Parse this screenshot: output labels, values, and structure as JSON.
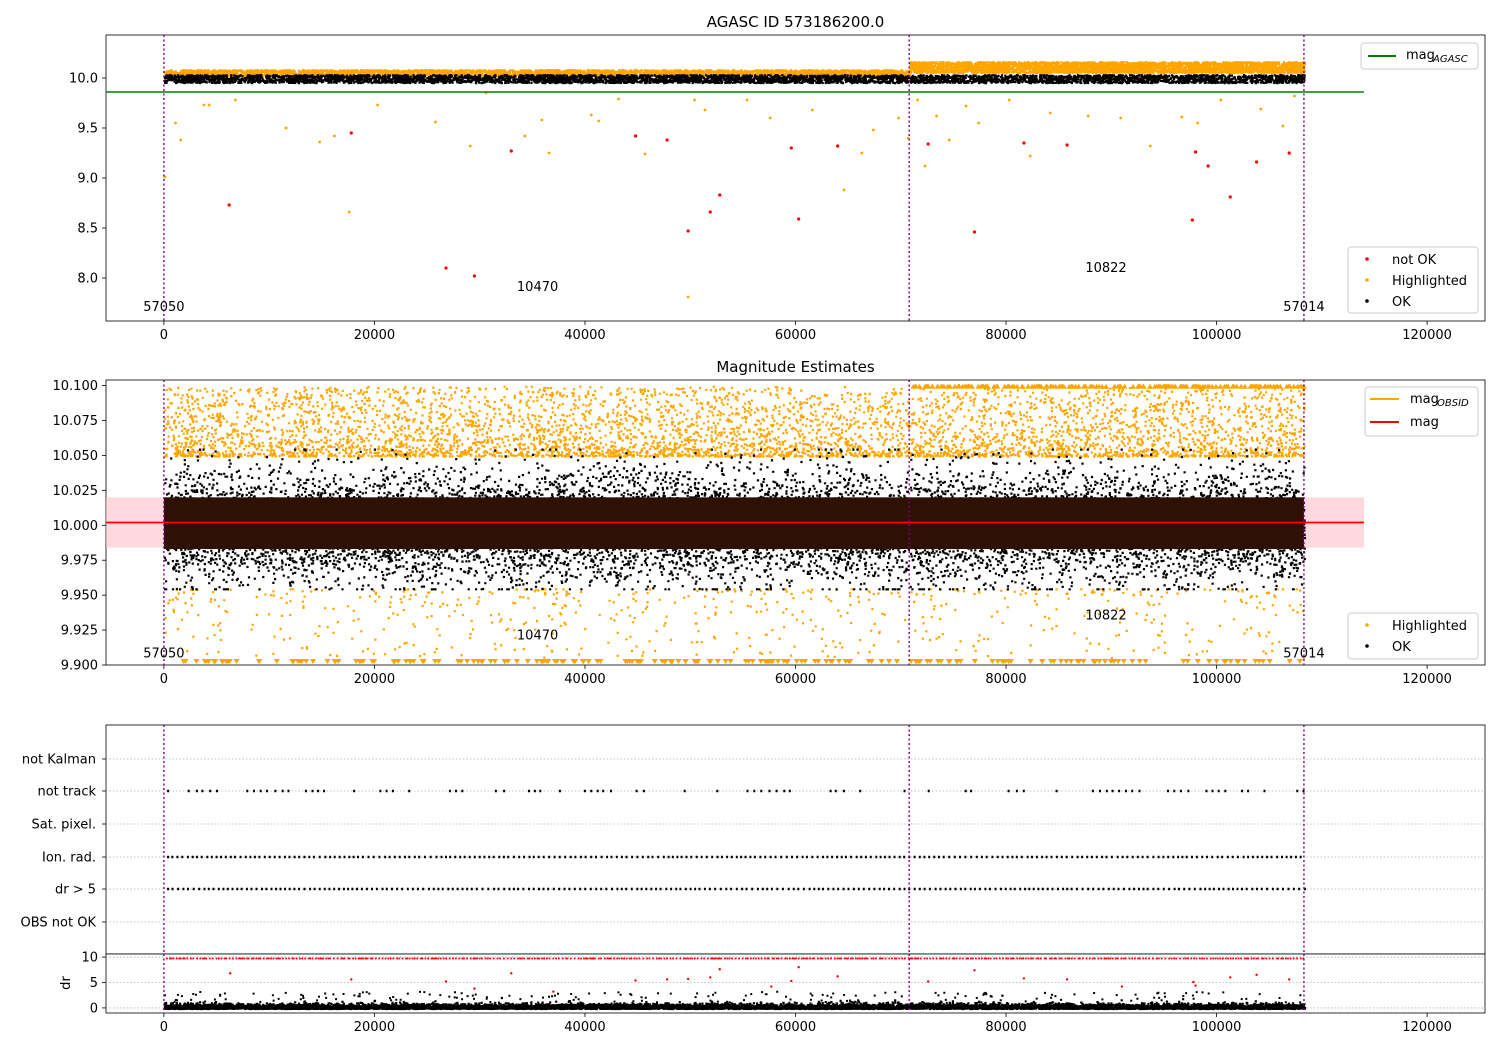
{
  "chart_data": [
    {
      "type": "scatter",
      "title": "AGASC ID 573186200.0",
      "xlim": [
        -5500,
        125500
      ],
      "ylim": [
        7.57,
        10.43
      ],
      "xticks": [
        0,
        20000,
        40000,
        60000,
        80000,
        100000,
        120000
      ],
      "yticks": [
        8.0,
        8.5,
        9.0,
        9.5,
        10.0
      ],
      "ytick_labels": [
        "8.0",
        "8.5",
        "9.0",
        "9.5",
        "10.0"
      ],
      "obsid_boundaries": [
        0,
        70800,
        108300
      ],
      "obsid_labels": [
        {
          "text": "57050",
          "x": 0,
          "y": 7.72
        },
        {
          "text": "10470",
          "x": 35500,
          "y": 7.92
        },
        {
          "text": "10822",
          "x": 89500,
          "y": 8.11
        },
        {
          "text": "57014",
          "x": 108300,
          "y": 7.72
        }
      ],
      "hlines": [
        {
          "name": "mag_AGASC",
          "y": 9.86,
          "x": [
            -5500,
            114000
          ],
          "color": "#008000"
        }
      ],
      "legend_upper": {
        "position": "top-right",
        "entries": [
          {
            "label": "mag",
            "sub": "AGASC",
            "kind": "line",
            "color": "#008000"
          }
        ]
      },
      "legend_lower": {
        "position": "bottom-right",
        "entries": [
          {
            "label": "not OK",
            "kind": "dot",
            "color": "#ff0000"
          },
          {
            "label": "Highlighted",
            "kind": "dot",
            "color": "#ffa500"
          },
          {
            "label": "OK",
            "kind": "dot",
            "color": "#000000"
          }
        ]
      },
      "series": [
        {
          "name": "not OK",
          "color": "#ff0000",
          "points": [
            [
              6200,
              8.73
            ],
            [
              17800,
              9.45
            ],
            [
              26800,
              8.1
            ],
            [
              29500,
              8.02
            ],
            [
              33000,
              9.27
            ],
            [
              44800,
              9.42
            ],
            [
              47800,
              9.38
            ],
            [
              49800,
              8.47
            ],
            [
              51900,
              8.66
            ],
            [
              52800,
              8.83
            ],
            [
              59600,
              9.3
            ],
            [
              60300,
              8.59
            ],
            [
              64000,
              9.32
            ],
            [
              72600,
              9.34
            ],
            [
              77000,
              8.46
            ],
            [
              81700,
              9.35
            ],
            [
              85800,
              9.33
            ],
            [
              97700,
              8.58
            ],
            [
              98000,
              9.26
            ],
            [
              99200,
              9.12
            ],
            [
              101300,
              8.81
            ],
            [
              103800,
              9.16
            ],
            [
              106900,
              9.25
            ]
          ]
        },
        {
          "name": "Highlighted",
          "color": "#ffa500",
          "points": [
            [
              100,
              9.01
            ],
            [
              1100,
              9.55
            ],
            [
              1600,
              9.38
            ],
            [
              3800,
              9.73
            ],
            [
              4300,
              9.73
            ],
            [
              6800,
              9.78
            ],
            [
              11600,
              9.5
            ],
            [
              14800,
              9.36
            ],
            [
              16200,
              9.42
            ],
            [
              17600,
              8.66
            ],
            [
              20300,
              9.73
            ],
            [
              25800,
              9.56
            ],
            [
              29100,
              9.32
            ],
            [
              30600,
              9.85
            ],
            [
              34300,
              9.42
            ],
            [
              35900,
              9.58
            ],
            [
              36600,
              9.25
            ],
            [
              40600,
              9.63
            ],
            [
              41300,
              9.57
            ],
            [
              43200,
              9.79
            ],
            [
              45700,
              9.24
            ],
            [
              49800,
              7.81
            ],
            [
              50400,
              9.78
            ],
            [
              51400,
              9.68
            ],
            [
              55400,
              9.78
            ],
            [
              57600,
              9.6
            ],
            [
              61600,
              9.68
            ],
            [
              64600,
              8.88
            ],
            [
              66300,
              9.25
            ],
            [
              67400,
              9.48
            ],
            [
              69800,
              9.6
            ],
            [
              70700,
              9.4
            ],
            [
              71600,
              9.78
            ],
            [
              72300,
              9.12
            ],
            [
              73400,
              9.62
            ],
            [
              74600,
              9.38
            ],
            [
              76200,
              9.72
            ],
            [
              77400,
              9.55
            ],
            [
              80300,
              9.78
            ],
            [
              82300,
              9.22
            ],
            [
              84200,
              9.65
            ],
            [
              87800,
              9.62
            ],
            [
              90900,
              9.6
            ],
            [
              93700,
              9.32
            ],
            [
              96700,
              9.61
            ],
            [
              98200,
              9.55
            ],
            [
              100400,
              9.78
            ],
            [
              104200,
              9.69
            ],
            [
              106300,
              9.52
            ],
            [
              107400,
              9.82
            ]
          ]
        },
        {
          "name": "OK",
          "color": "#000000",
          "band": {
            "x": [
              0,
              108300
            ],
            "y": [
              9.96,
              10.04
            ]
          }
        }
      ],
      "highlight_band_upper": [
        {
          "x": [
            0,
            70800
          ],
          "y": [
            10.03,
            10.09
          ]
        },
        {
          "x": [
            70800,
            108300
          ],
          "y": [
            10.06,
            10.17
          ]
        }
      ]
    },
    {
      "type": "scatter",
      "title": "Magnitude Estimates",
      "xlim": [
        -5500,
        125500
      ],
      "ylim": [
        9.9,
        10.104
      ],
      "xticks": [
        0,
        20000,
        40000,
        60000,
        80000,
        100000,
        120000
      ],
      "yticks": [
        9.9,
        9.925,
        9.95,
        9.975,
        10.0,
        10.025,
        10.05,
        10.075,
        10.1
      ],
      "ytick_labels": [
        "9.900",
        "9.925",
        "9.950",
        "9.975",
        "10.000",
        "10.025",
        "10.050",
        "10.075",
        "10.100"
      ],
      "obsid_boundaries": [
        0,
        70800,
        108300
      ],
      "obsid_labels": [
        {
          "text": "57050",
          "x": 0,
          "y": 9.909
        },
        {
          "text": "10470",
          "x": 35500,
          "y": 9.922
        },
        {
          "text": "10822",
          "x": 89500,
          "y": 9.936
        },
        {
          "text": "57014",
          "x": 108300,
          "y": 9.909
        }
      ],
      "mag_line": {
        "name": "mag",
        "y": 10.002,
        "x": [
          -5500,
          114000
        ],
        "color": "#ff0000",
        "band": [
          9.984,
          10.02
        ]
      },
      "mag_obsid": {
        "name": "mag_OBSID",
        "color": "#ffa500",
        "segments": [
          {
            "x": [
              0,
              70800
            ],
            "y": 10.0
          },
          {
            "x": [
              70800,
              108300
            ],
            "y": 10.002
          }
        ]
      },
      "legend_upper": {
        "position": "top-right",
        "entries": [
          {
            "label": "mag",
            "sub": "OBSID",
            "kind": "line",
            "color": "#ffa500"
          },
          {
            "label": "mag",
            "kind": "line",
            "color": "#ff0000"
          }
        ]
      },
      "legend_lower": {
        "position": "bottom-right",
        "entries": [
          {
            "label": "Highlighted",
            "kind": "dot",
            "color": "#ffa500"
          },
          {
            "label": "OK",
            "kind": "dot",
            "color": "#000000"
          }
        ]
      },
      "series": [
        {
          "name": "OK",
          "color": "#000000",
          "band": {
            "x": [
              0,
              108300
            ],
            "y": [
              9.955,
              10.055
            ]
          }
        },
        {
          "name": "Highlighted",
          "color": "#ffa500",
          "band_upper": {
            "y": [
              10.05,
              10.1
            ]
          },
          "band_lower": {
            "y": [
              9.905,
              9.955
            ]
          }
        }
      ],
      "clipped_markers": {
        "color": "#ffa500",
        "upper_y": 10.102,
        "lower_y": 9.9
      }
    },
    {
      "type": "scatter",
      "title": "",
      "xlim": [
        -5500,
        125500
      ],
      "categories": [
        "not Kalman",
        "not track",
        "Sat. pixel.",
        "Ion. rad.",
        "dr > 5",
        "OBS not OK"
      ],
      "obsid_boundaries": [
        0,
        70800,
        108300
      ],
      "flag_rows": [
        {
          "label": "not track",
          "pattern": "sparse"
        },
        {
          "label": "Ion. rad.",
          "pattern": "dense"
        },
        {
          "label": "dr > 5",
          "pattern": "dense"
        }
      ]
    },
    {
      "type": "scatter",
      "title": "",
      "ylabel": "dr",
      "xlim": [
        -5500,
        125500
      ],
      "ylim": [
        -1,
        10.6
      ],
      "xticks": [
        0,
        20000,
        40000,
        60000,
        80000,
        100000,
        120000
      ],
      "yticks": [
        0,
        5,
        10
      ],
      "ytick_labels": [
        "0",
        "5",
        "10"
      ],
      "obsid_boundaries": [
        0,
        70800,
        108300
      ],
      "series": [
        {
          "name": "OK",
          "color": "#000000",
          "band": {
            "y": [
              0,
              1
            ]
          }
        },
        {
          "name": "not OK",
          "color": "#ff0000",
          "clipped_y": 9.7,
          "points": [
            [
              6300,
              6.8
            ],
            [
              17800,
              5.6
            ],
            [
              26800,
              5.2
            ],
            [
              29500,
              3.8
            ],
            [
              33000,
              6.8
            ],
            [
              37000,
              3.2
            ],
            [
              44800,
              5.4
            ],
            [
              47800,
              5.6
            ],
            [
              49800,
              5.7
            ],
            [
              51900,
              6.0
            ],
            [
              52800,
              7.6
            ],
            [
              57700,
              4.2
            ],
            [
              59600,
              5.3
            ],
            [
              60300,
              8.0
            ],
            [
              64000,
              6.2
            ],
            [
              72600,
              5.2
            ],
            [
              77000,
              7.4
            ],
            [
              81700,
              5.8
            ],
            [
              85800,
              5.6
            ],
            [
              91000,
              4.2
            ],
            [
              97800,
              5.1
            ],
            [
              98000,
              4.4
            ],
            [
              101300,
              6.0
            ],
            [
              103800,
              6.5
            ],
            [
              106900,
              5.6
            ]
          ]
        }
      ]
    }
  ],
  "colors": {
    "boundary": "#800080",
    "ok": "#000000",
    "highlighted": "#ffa500",
    "not_ok": "#ff0000",
    "agasc": "#008000"
  }
}
